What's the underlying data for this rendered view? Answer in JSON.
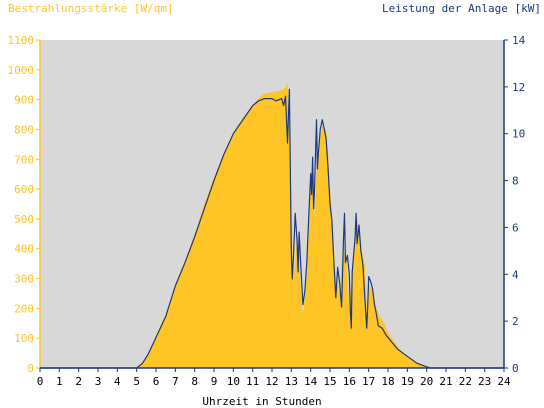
{
  "chart_data": {
    "type": "area",
    "left_axis_title": "Bestrahlungsstärke [W/qm]",
    "right_axis_title": "Leistung der Anlage [kW]",
    "xlabel": "Uhrzeit in Stunden",
    "xlim": [
      0,
      24
    ],
    "x_ticks": [
      "0",
      "1",
      "2",
      "3",
      "4",
      "5",
      "6",
      "7",
      "8",
      "9",
      "10",
      "11",
      "12",
      "13",
      "14",
      "15",
      "16",
      "17",
      "18",
      "19",
      "20",
      "21",
      "22",
      "23",
      "24"
    ],
    "ylim_left": [
      0,
      1100
    ],
    "y_ticks_left": [
      "0",
      "100",
      "200",
      "300",
      "400",
      "500",
      "600",
      "700",
      "800",
      "900",
      "1000",
      "1100"
    ],
    "ylim_right": [
      0,
      14
    ],
    "y_ticks_right": [
      "0",
      "2",
      "4",
      "6",
      "8",
      "10",
      "12",
      "14"
    ],
    "grid": false,
    "colors": {
      "plot_bg": "#d8d8d8",
      "irradiance_fill": "#ffc526",
      "power_line": "#1c3a80",
      "left_axis": "#ffc526",
      "right_axis": "#1c3a80"
    },
    "series": [
      {
        "axis": "left",
        "values": [
          [
            0,
            0
          ],
          [
            5.0,
            0
          ],
          [
            5.3,
            20
          ],
          [
            5.6,
            50
          ],
          [
            6.0,
            110
          ],
          [
            6.5,
            180
          ],
          [
            7.0,
            280
          ],
          [
            7.5,
            360
          ],
          [
            8.0,
            450
          ],
          [
            8.5,
            550
          ],
          [
            9.0,
            640
          ],
          [
            9.5,
            720
          ],
          [
            10.0,
            790
          ],
          [
            10.5,
            840
          ],
          [
            11.0,
            880
          ],
          [
            11.3,
            905
          ],
          [
            11.6,
            920
          ],
          [
            12.0,
            925
          ],
          [
            12.4,
            930
          ],
          [
            12.7,
            940
          ],
          [
            12.8,
            960
          ],
          [
            12.9,
            780
          ],
          [
            13.0,
            550
          ],
          [
            13.1,
            300
          ],
          [
            13.2,
            350
          ],
          [
            13.3,
            450
          ],
          [
            13.4,
            380
          ],
          [
            13.5,
            250
          ],
          [
            13.6,
            180
          ],
          [
            13.8,
            300
          ],
          [
            14.0,
            620
          ],
          [
            14.1,
            700
          ],
          [
            14.2,
            500
          ],
          [
            14.3,
            650
          ],
          [
            14.5,
            780
          ],
          [
            14.6,
            810
          ],
          [
            14.8,
            800
          ],
          [
            14.9,
            720
          ],
          [
            15.0,
            600
          ],
          [
            15.1,
            520
          ],
          [
            15.2,
            400
          ],
          [
            15.3,
            300
          ],
          [
            15.5,
            250
          ],
          [
            15.6,
            350
          ],
          [
            15.8,
            400
          ],
          [
            15.9,
            300
          ],
          [
            16.0,
            200
          ],
          [
            16.2,
            350
          ],
          [
            16.3,
            450
          ],
          [
            16.4,
            500
          ],
          [
            16.5,
            470
          ],
          [
            16.6,
            400
          ],
          [
            16.8,
            350
          ],
          [
            16.9,
            200
          ],
          [
            17.0,
            280
          ],
          [
            17.2,
            260
          ],
          [
            17.4,
            200
          ],
          [
            17.6,
            170
          ],
          [
            17.8,
            150
          ],
          [
            18.0,
            120
          ],
          [
            18.5,
            70
          ],
          [
            19.0,
            40
          ],
          [
            19.5,
            20
          ],
          [
            20.0,
            5
          ],
          [
            20.2,
            0
          ],
          [
            24,
            0
          ]
        ]
      },
      {
        "axis": "right",
        "values": [
          [
            0,
            0
          ],
          [
            5.0,
            0
          ],
          [
            5.3,
            0.2
          ],
          [
            5.6,
            0.6
          ],
          [
            6.0,
            1.3
          ],
          [
            6.5,
            2.2
          ],
          [
            7.0,
            3.5
          ],
          [
            7.5,
            4.5
          ],
          [
            8.0,
            5.6
          ],
          [
            8.5,
            6.8
          ],
          [
            9.0,
            8.0
          ],
          [
            9.5,
            9.1
          ],
          [
            10.0,
            10.0
          ],
          [
            10.5,
            10.6
          ],
          [
            11.0,
            11.2
          ],
          [
            11.3,
            11.4
          ],
          [
            11.6,
            11.5
          ],
          [
            12.0,
            11.5
          ],
          [
            12.2,
            11.4
          ],
          [
            12.5,
            11.5
          ],
          [
            12.6,
            11.2
          ],
          [
            12.7,
            11.6
          ],
          [
            12.8,
            9.6
          ],
          [
            12.9,
            11.9
          ],
          [
            13.0,
            5.0
          ],
          [
            13.05,
            3.8
          ],
          [
            13.1,
            4.6
          ],
          [
            13.2,
            6.6
          ],
          [
            13.3,
            5.4
          ],
          [
            13.35,
            4.1
          ],
          [
            13.4,
            5.8
          ],
          [
            13.5,
            4.2
          ],
          [
            13.6,
            2.7
          ],
          [
            13.7,
            3.3
          ],
          [
            13.8,
            4.5
          ],
          [
            13.9,
            6.4
          ],
          [
            14.0,
            8.3
          ],
          [
            14.05,
            7.4
          ],
          [
            14.1,
            9.0
          ],
          [
            14.15,
            6.8
          ],
          [
            14.2,
            7.6
          ],
          [
            14.3,
            10.6
          ],
          [
            14.35,
            8.5
          ],
          [
            14.4,
            9.2
          ],
          [
            14.5,
            10.2
          ],
          [
            14.6,
            10.6
          ],
          [
            14.7,
            10.2
          ],
          [
            14.8,
            9.8
          ],
          [
            14.9,
            8.5
          ],
          [
            15.0,
            7.0
          ],
          [
            15.1,
            6.3
          ],
          [
            15.2,
            4.5
          ],
          [
            15.3,
            3.0
          ],
          [
            15.4,
            4.3
          ],
          [
            15.5,
            3.6
          ],
          [
            15.6,
            2.6
          ],
          [
            15.7,
            5.5
          ],
          [
            15.75,
            6.6
          ],
          [
            15.8,
            4.5
          ],
          [
            15.9,
            4.8
          ],
          [
            16.0,
            4.0
          ],
          [
            16.05,
            2.5
          ],
          [
            16.1,
            1.7
          ],
          [
            16.15,
            4.1
          ],
          [
            16.2,
            4.6
          ],
          [
            16.3,
            5.6
          ],
          [
            16.35,
            6.6
          ],
          [
            16.4,
            5.3
          ],
          [
            16.5,
            6.1
          ],
          [
            16.6,
            5.0
          ],
          [
            16.7,
            4.4
          ],
          [
            16.8,
            3.0
          ],
          [
            16.9,
            1.7
          ],
          [
            16.95,
            2.6
          ],
          [
            17.0,
            3.9
          ],
          [
            17.1,
            3.7
          ],
          [
            17.2,
            3.4
          ],
          [
            17.3,
            2.7
          ],
          [
            17.4,
            2.3
          ],
          [
            17.5,
            1.8
          ],
          [
            17.7,
            1.7
          ],
          [
            17.9,
            1.4
          ],
          [
            18.0,
            1.3
          ],
          [
            18.5,
            0.8
          ],
          [
            19.0,
            0.5
          ],
          [
            19.5,
            0.2
          ],
          [
            20.0,
            0.05
          ],
          [
            20.2,
            0
          ],
          [
            24,
            0
          ]
        ]
      }
    ]
  }
}
